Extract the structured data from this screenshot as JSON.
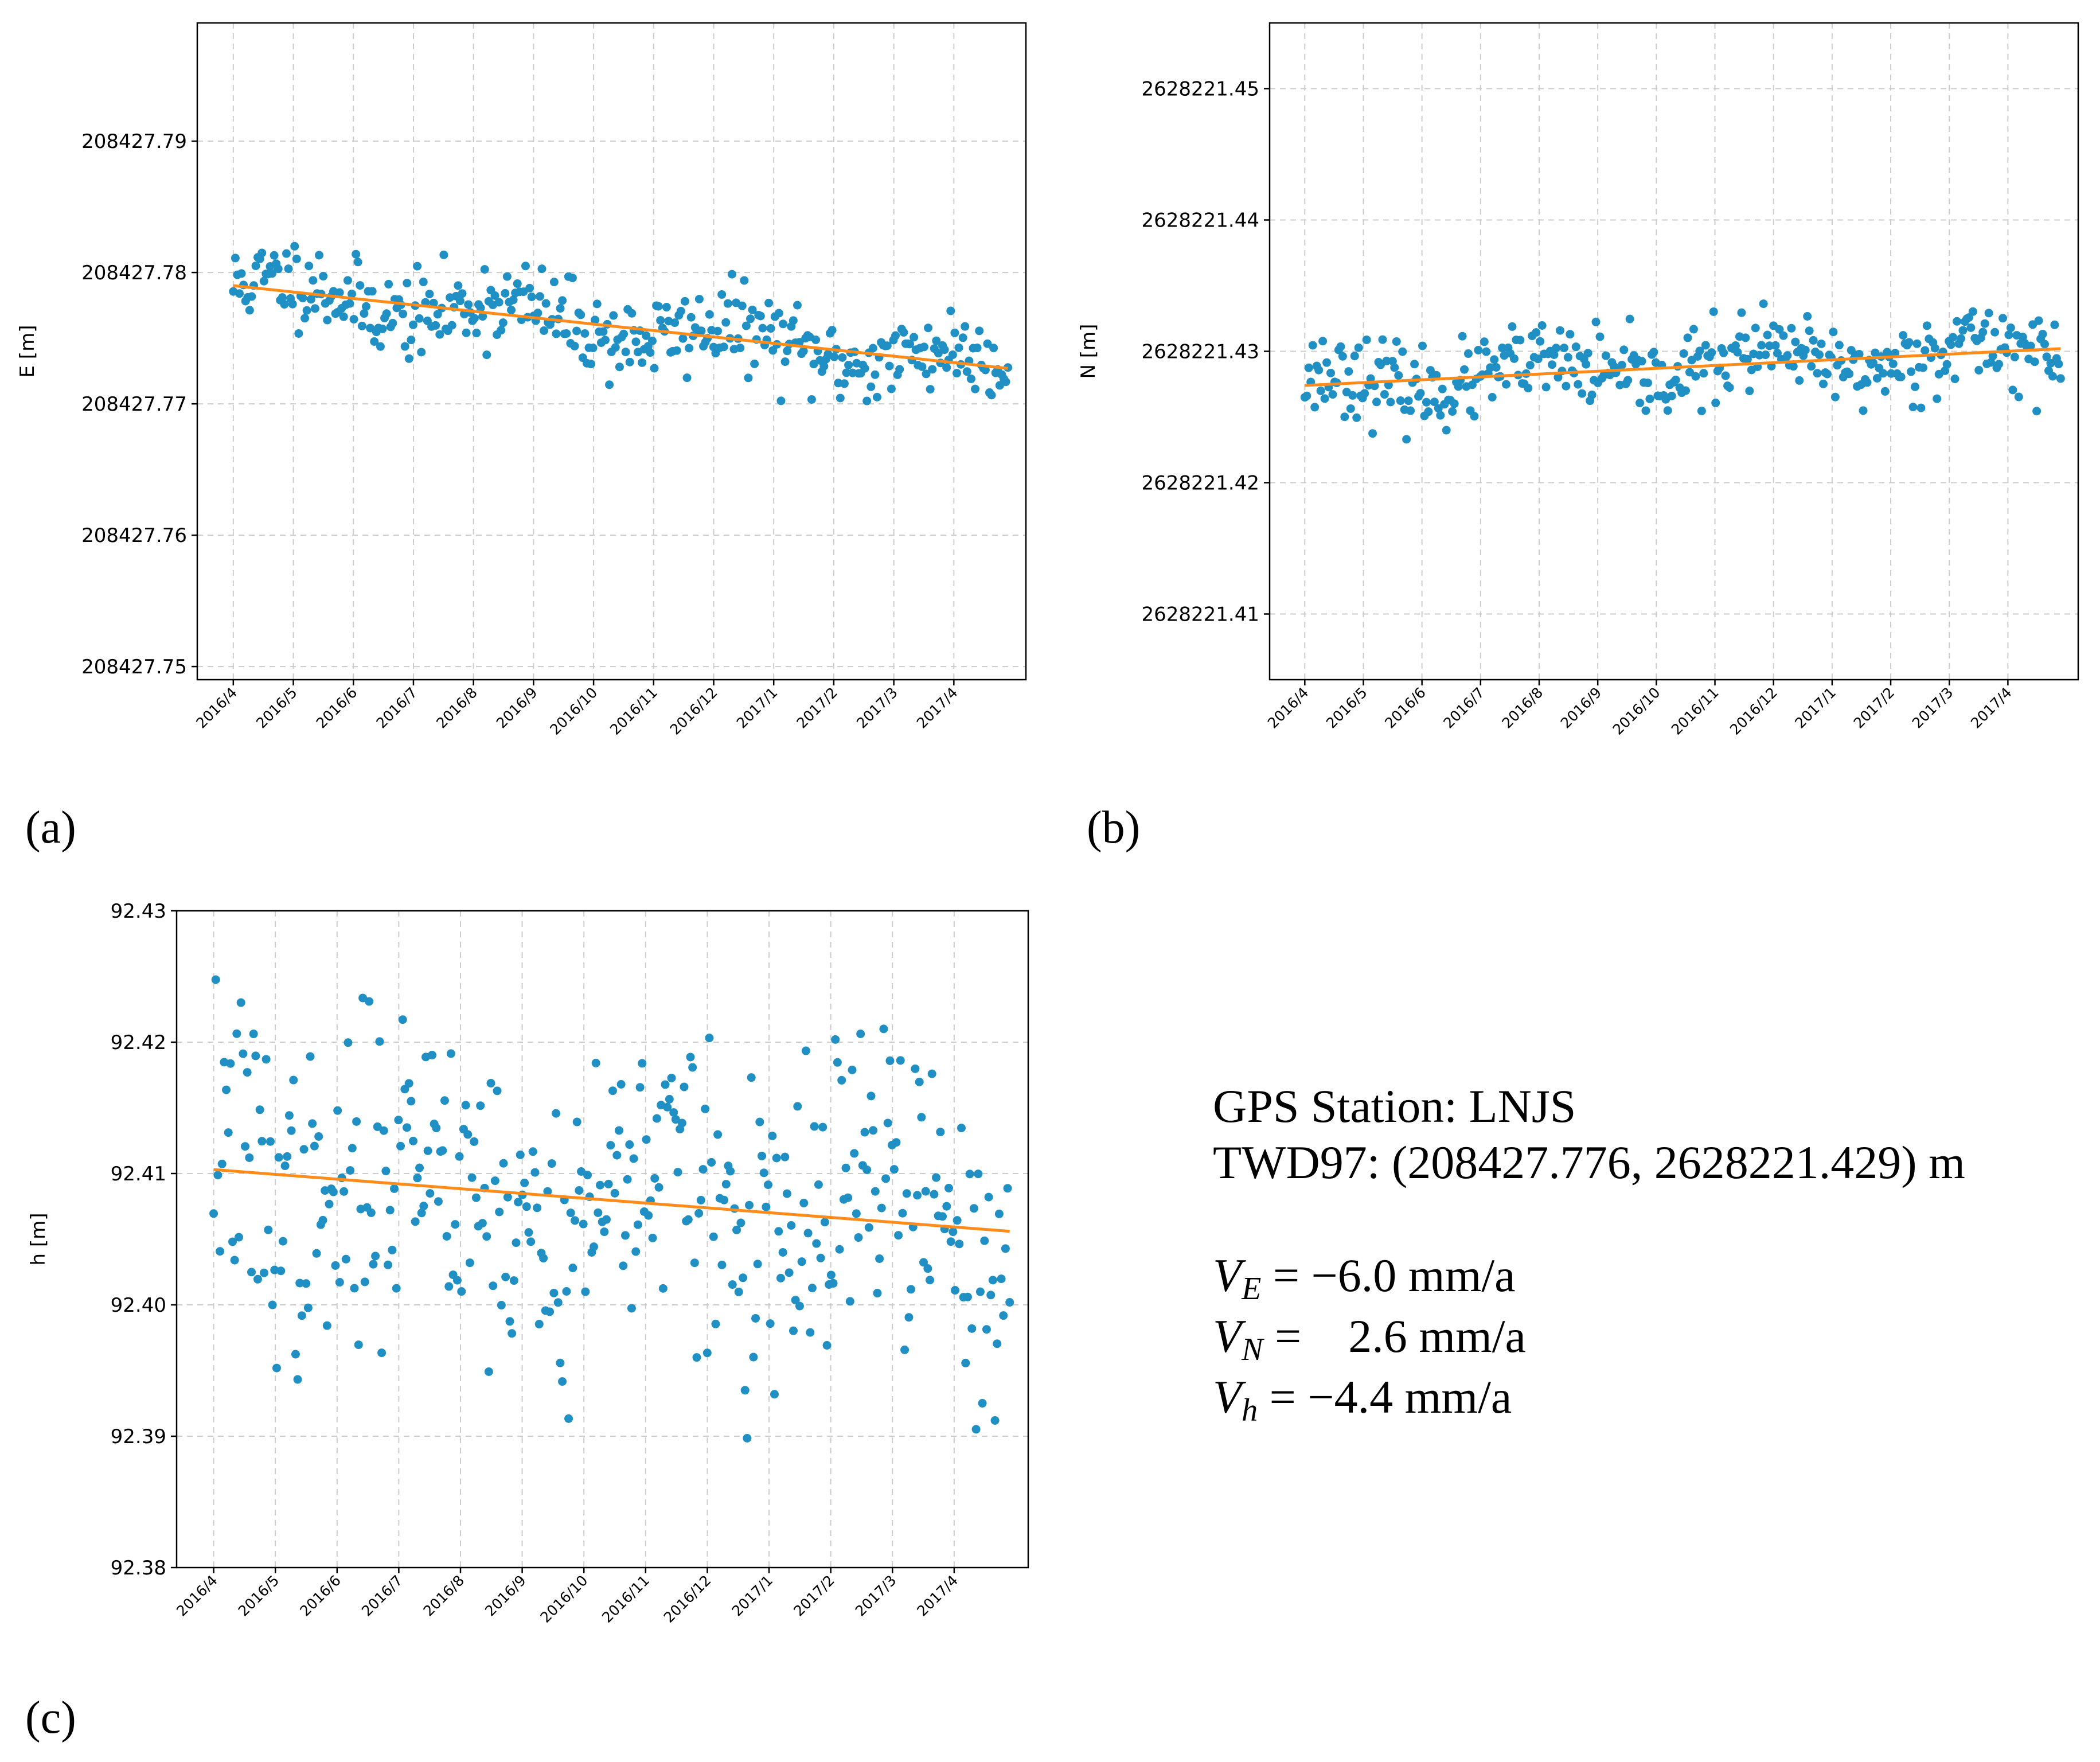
{
  "panels": [
    {
      "label": "(a)"
    },
    {
      "label": "(b)"
    },
    {
      "label": "(c)"
    }
  ],
  "info": {
    "station": "GPS Station: LNJS",
    "coords": "TWD97: (208427.776, 2628221.429) m",
    "velocities": [
      {
        "symbol": "V",
        "sub": "E",
        "text": " = −6.0 mm/a"
      },
      {
        "symbol": "V",
        "sub": "N",
        "text": " =    2.6 mm/a"
      },
      {
        "symbol": "V",
        "sub": "h",
        "text": " = −4.4 mm/a"
      }
    ]
  },
  "colors": {
    "points": "#1f8fc4",
    "trend": "#ff8c1a",
    "grid": "#cccccc"
  },
  "chart_data": [
    {
      "type": "scatter",
      "id": "east",
      "ylabel": "E [m]",
      "x_tick_labels": [
        "2016/4",
        "2016/5",
        "2016/6",
        "2016/7",
        "2016/8",
        "2016/9",
        "2016/10",
        "2016/11",
        "2016/12",
        "2017/1",
        "2017/2",
        "2017/3",
        "2017/4"
      ],
      "x_range": [
        -0.6,
        13.2
      ],
      "x_data_end": 12.9,
      "y_ticks": [
        208427.75,
        208427.76,
        208427.77,
        208427.78,
        208427.79
      ],
      "y_tick_labels": [
        "208427.75",
        "208427.76",
        "208427.77",
        "208427.78",
        "208427.79"
      ],
      "ylim": [
        208427.749,
        208427.799
      ],
      "trend": {
        "start": 208427.779,
        "end": 208427.7727
      },
      "scatter": {
        "count": 380,
        "noise": 0.0016,
        "seed": 11
      },
      "grid": true
    },
    {
      "type": "scatter",
      "id": "north",
      "ylabel": "N [m]",
      "x_tick_labels": [
        "2016/4",
        "2016/5",
        "2016/6",
        "2016/7",
        "2016/8",
        "2016/9",
        "2016/10",
        "2016/11",
        "2016/12",
        "2017/1",
        "2017/2",
        "2017/3",
        "2017/4"
      ],
      "x_range": [
        -0.6,
        13.2
      ],
      "x_data_end": 12.9,
      "y_ticks": [
        2628221.41,
        2628221.42,
        2628221.43,
        2628221.44,
        2628221.45
      ],
      "y_tick_labels": [
        "2628221.41",
        "2628221.42",
        "2628221.43",
        "2628221.44",
        "2628221.45"
      ],
      "ylim": [
        2628221.405,
        2628221.455
      ],
      "trend": {
        "start": 2628221.4274,
        "end": 2628221.4302
      },
      "scatter": {
        "count": 380,
        "noise": 0.0015,
        "seed": 23
      },
      "grid": true
    },
    {
      "type": "scatter",
      "id": "height",
      "ylabel": "h [m]",
      "x_tick_labels": [
        "2016/4",
        "2016/5",
        "2016/6",
        "2016/7",
        "2016/8",
        "2016/9",
        "2016/10",
        "2016/11",
        "2016/12",
        "2017/1",
        "2017/2",
        "2017/3",
        "2017/4"
      ],
      "x_range": [
        -0.6,
        13.2
      ],
      "x_data_end": 12.9,
      "y_ticks": [
        92.38,
        92.39,
        92.4,
        92.41,
        92.42,
        92.43
      ],
      "y_tick_labels": [
        "92.38",
        "92.39",
        "92.40",
        "92.41",
        "92.42",
        "92.43"
      ],
      "ylim": [
        92.38,
        92.43
      ],
      "trend": {
        "start": 92.4103,
        "end": 92.4056
      },
      "scatter": {
        "count": 380,
        "noise": 0.006,
        "seed": 37
      },
      "grid": true
    }
  ]
}
